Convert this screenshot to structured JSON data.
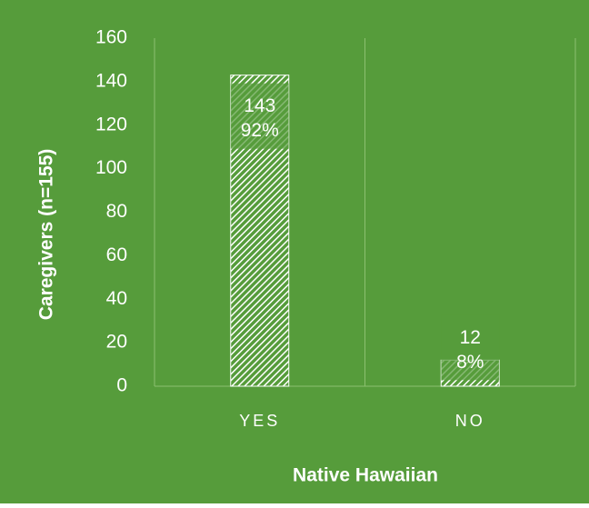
{
  "chart_data": {
    "type": "bar",
    "x_label": "Native Hawaiian",
    "y_label": "Caregivers (n=155)",
    "categories": [
      "YES",
      "NO"
    ],
    "values": [
      143,
      12
    ],
    "percent_labels": [
      "92%",
      "8%"
    ],
    "color": "#ffffff",
    "background": "#569c3b",
    "ylim": [
      0,
      160
    ],
    "yticks": [
      0,
      20,
      40,
      60,
      80,
      100,
      120,
      140,
      160
    ],
    "grid": "x"
  }
}
